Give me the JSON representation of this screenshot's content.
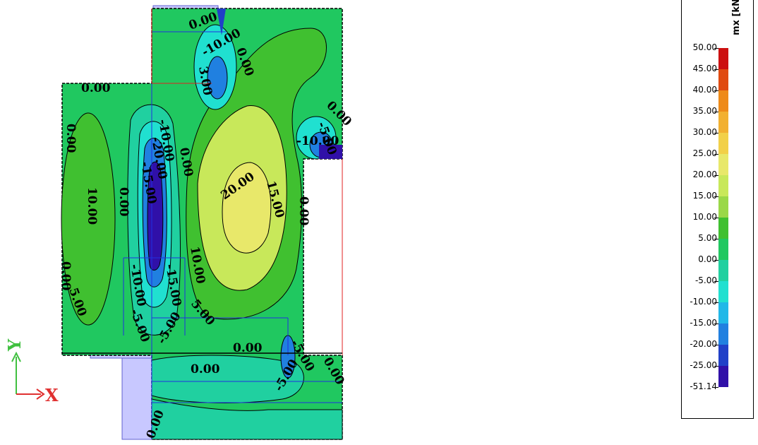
{
  "contour_labels": [
    "0.00",
    "10.00",
    "3.00",
    "-10.00",
    "-20.00",
    "-15.00",
    "20.00",
    "15.00",
    "5.00",
    "-5.00"
  ],
  "legend": {
    "unit": "mx [kNm/m]",
    "ticks": [
      "50.00",
      "45.00",
      "40.00",
      "35.00",
      "30.00",
      "25.00",
      "20.00",
      "15.00",
      "10.00",
      "5.00",
      "0.00",
      "-5.00",
      "-10.00",
      "-15.00",
      "-20.00",
      "-25.00",
      "-51.14"
    ],
    "colors": [
      "#cc1010",
      "#e04a10",
      "#ee8a18",
      "#f2b030",
      "#f2d048",
      "#e8e86a",
      "#c8e85a",
      "#9ad848",
      "#40c030",
      "#20c860",
      "#20d0a0",
      "#20e0d0",
      "#20b8e8",
      "#2080e0",
      "#2040c8",
      "#3010a8"
    ]
  },
  "axes": {
    "x": "X",
    "y": "Y"
  },
  "colors": {
    "light_green": "#20c860",
    "mid_green": "#40c030",
    "yellow_green": "#c8e85a",
    "yellow": "#e8e86a",
    "teal": "#20d0a0",
    "cyan": "#20e0d0",
    "blue": "#2080e0",
    "dark_blue": "#3010a8",
    "support": "#c8c8ff"
  }
}
